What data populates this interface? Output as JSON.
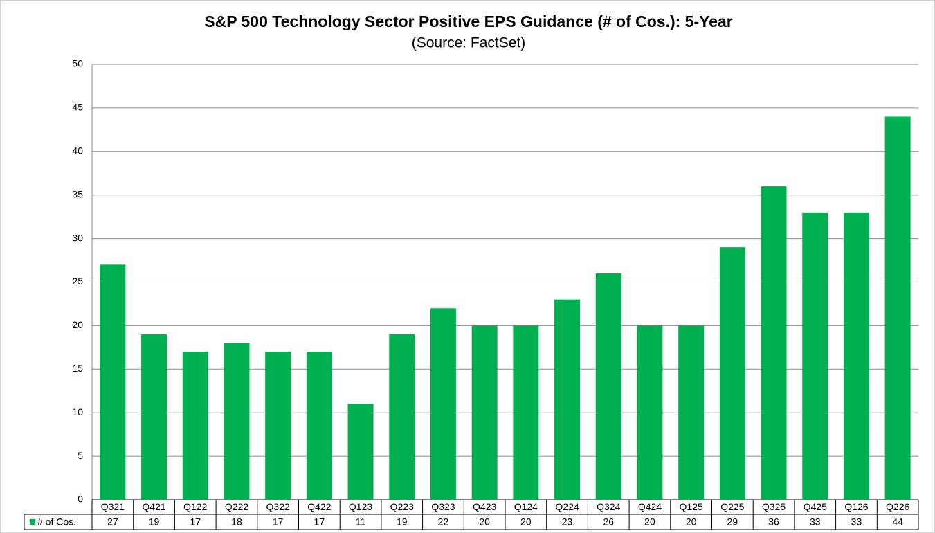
{
  "chart_data": {
    "type": "bar",
    "title": "S&P 500 Technology Sector Positive EPS Guidance (# of Cos.): 5-Year",
    "subtitle": "(Source: FactSet)",
    "categories": [
      "Q321",
      "Q421",
      "Q122",
      "Q222",
      "Q322",
      "Q422",
      "Q123",
      "Q223",
      "Q323",
      "Q423",
      "Q124",
      "Q224",
      "Q324",
      "Q424",
      "Q125",
      "Q225",
      "Q325",
      "Q425",
      "Q126",
      "Q226"
    ],
    "series": [
      {
        "name": "# of Cos.",
        "color": "#00b050",
        "values": [
          27,
          19,
          17,
          18,
          17,
          17,
          11,
          19,
          22,
          20,
          20,
          23,
          26,
          20,
          20,
          29,
          36,
          33,
          33,
          44
        ]
      }
    ],
    "ylim": [
      0,
      50
    ],
    "yticks": [
      0,
      5,
      10,
      15,
      20,
      25,
      30,
      35,
      40,
      45,
      50
    ],
    "grid": true
  }
}
